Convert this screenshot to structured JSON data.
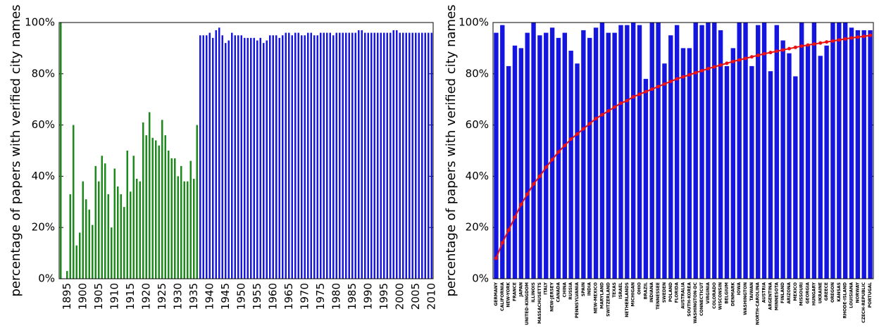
{
  "chart_data": [
    {
      "type": "bar",
      "ylabel": "percentage of papers with verified city names",
      "xlim": [
        1892.5,
        2010.5
      ],
      "ylim": [
        0,
        100
      ],
      "xticks": [
        1895,
        1900,
        1905,
        1910,
        1915,
        1920,
        1925,
        1930,
        1935,
        1940,
        1945,
        1950,
        1955,
        1960,
        1965,
        1970,
        1975,
        1980,
        1985,
        1990,
        1995,
        2000,
        2005,
        2010
      ],
      "yticks": [
        {
          "value": 0,
          "label": "0%"
        },
        {
          "value": 20,
          "label": "20%"
        },
        {
          "value": 40,
          "label": "40%"
        },
        {
          "value": 60,
          "label": "60%"
        },
        {
          "value": 80,
          "label": "80%"
        },
        {
          "value": 100,
          "label": "100%"
        }
      ],
      "series": [
        {
          "color": "#1a8a1a",
          "mark": "bar",
          "x": [
            1893,
            1894,
            1895,
            1896,
            1897,
            1898,
            1899,
            1900,
            1901,
            1902,
            1903,
            1904,
            1905,
            1906,
            1907,
            1908,
            1909,
            1910,
            1911,
            1912,
            1913,
            1914,
            1915,
            1916,
            1917,
            1918,
            1919,
            1920,
            1921,
            1922,
            1923,
            1924,
            1925,
            1926,
            1927,
            1928,
            1929,
            1930,
            1931,
            1932,
            1933,
            1934,
            1935,
            1936
          ],
          "values": [
            100,
            0,
            3,
            33,
            60,
            13,
            18,
            38,
            31,
            27,
            21,
            44,
            38,
            48,
            45,
            33,
            20,
            43,
            36,
            33,
            28,
            50,
            34,
            48,
            39,
            38,
            61,
            56,
            65,
            55,
            54,
            52,
            62,
            56,
            50,
            47,
            47,
            40,
            44,
            38,
            38,
            46,
            39,
            60
          ]
        },
        {
          "color": "#1515e0",
          "mark": "bar",
          "x": [
            1937,
            1938,
            1939,
            1940,
            1941,
            1942,
            1943,
            1944,
            1945,
            1946,
            1947,
            1948,
            1949,
            1950,
            1951,
            1952,
            1953,
            1954,
            1955,
            1956,
            1957,
            1958,
            1959,
            1960,
            1961,
            1962,
            1963,
            1964,
            1965,
            1966,
            1967,
            1968,
            1969,
            1970,
            1971,
            1972,
            1973,
            1974,
            1975,
            1976,
            1977,
            1978,
            1979,
            1980,
            1981,
            1982,
            1983,
            1984,
            1985,
            1986,
            1987,
            1988,
            1989,
            1990,
            1991,
            1992,
            1993,
            1994,
            1995,
            1996,
            1997,
            1998,
            1999,
            2000,
            2001,
            2002,
            2003,
            2004,
            2005,
            2006,
            2007,
            2008,
            2009,
            2010
          ],
          "values": [
            95,
            95,
            95,
            96,
            94,
            97,
            98,
            95,
            92,
            93,
            96,
            95,
            95,
            95,
            94,
            94,
            94,
            94,
            93,
            94,
            92,
            93,
            95,
            95,
            95,
            94,
            95,
            96,
            96,
            95,
            96,
            96,
            95,
            95,
            96,
            96,
            95,
            95,
            96,
            96,
            96,
            96,
            95,
            96,
            96,
            96,
            96,
            96,
            96,
            96,
            97,
            97,
            96,
            96,
            96,
            96,
            96,
            96,
            96,
            96,
            96,
            97,
            97,
            96,
            96,
            96,
            96,
            96,
            96,
            96,
            96,
            96,
            96,
            96
          ]
        }
      ]
    },
    {
      "type": "bar",
      "ylabel": "percentage of papers with verified city names",
      "ylim": [
        0,
        100
      ],
      "yticks": [
        {
          "value": 0,
          "label": "0%"
        },
        {
          "value": 20,
          "label": "20%"
        },
        {
          "value": 40,
          "label": "40%"
        },
        {
          "value": 60,
          "label": "60%"
        },
        {
          "value": 80,
          "label": "80%"
        },
        {
          "value": 100,
          "label": "100%"
        }
      ],
      "categories": [
        "GERMANY",
        "CALIFORNIA",
        "NEW-YORK",
        "FRANCE",
        "JAPAN",
        "UNITED-KINGDOM",
        "ILLINOIS",
        "MASSACHUSETTS",
        "ITALY",
        "NEW-JERSEY",
        "CANADA",
        "CHINA",
        "RUSSIA",
        "PENNSYLVANIA",
        "SPAIN",
        "INDIA",
        "NEW-MEXICO",
        "MARYLAND",
        "SWITZERLAND",
        "TEXAS",
        "ISRAEL",
        "NETHERLANDS",
        "MICHIGAN",
        "OHIO",
        "BRAZIL",
        "INDIANA",
        "TENNESSEE",
        "SWEDEN",
        "POLAND",
        "FLORIDA",
        "AUSTRALIA",
        "SOUTH-KOREA",
        "WASHINGTON-DC",
        "CONNECTICUT",
        "VIRGINIA",
        "COLORADO",
        "WISCONSIN",
        "BELGIUM",
        "DENMARK",
        "IOWA",
        "WASHINGTON",
        "TAIWAN",
        "NORTH-CAROLINA",
        "AUSTRIA",
        "ARGENTINA",
        "MINNESOTA",
        "FINLAND",
        "ARIZONA",
        "MEXICO",
        "MISSOURI",
        "GEORGIA",
        "HUNGARY",
        "UKRAINE",
        "GREECE",
        "OREGON",
        "KANSAS",
        "RHODE-ISLAND",
        "LOUISIANA",
        "NORWAY",
        "CZECH-REPUBLIC",
        "PORTUGAL"
      ],
      "series": [
        {
          "color": "#1515e0",
          "mark": "bar",
          "values": [
            96,
            99,
            83,
            91,
            90,
            96,
            100,
            95,
            96,
            98,
            94,
            96,
            89,
            84,
            97,
            94,
            98,
            100,
            96,
            96,
            99,
            99,
            100,
            99,
            78,
            100,
            100,
            84,
            95,
            99,
            90,
            90,
            100,
            99,
            100,
            100,
            97,
            83,
            90,
            100,
            100,
            83,
            99,
            100,
            81,
            99,
            93,
            88,
            79,
            100,
            91,
            100,
            87,
            91,
            100,
            100,
            100,
            98,
            97,
            97,
            97
          ]
        },
        {
          "color": "#ee1111",
          "mark": "line",
          "values": [
            8,
            14,
            19,
            24,
            29,
            33,
            37,
            40,
            43.5,
            46.5,
            49.5,
            52,
            54.5,
            56.5,
            58.5,
            60.5,
            62.5,
            64,
            65.5,
            67,
            68.5,
            69.5,
            71,
            72,
            73,
            74,
            75,
            76,
            77,
            78,
            78.8,
            79.6,
            80.4,
            81.2,
            82,
            82.7,
            83.4,
            84.1,
            84.8,
            85.4,
            86,
            86.6,
            87.2,
            87.8,
            88.3,
            88.8,
            89.3,
            89.8,
            90.3,
            90.8,
            91.2,
            91.6,
            92,
            92.4,
            92.8,
            93.2,
            93.6,
            94,
            94.3,
            94.6,
            95
          ]
        }
      ]
    }
  ]
}
